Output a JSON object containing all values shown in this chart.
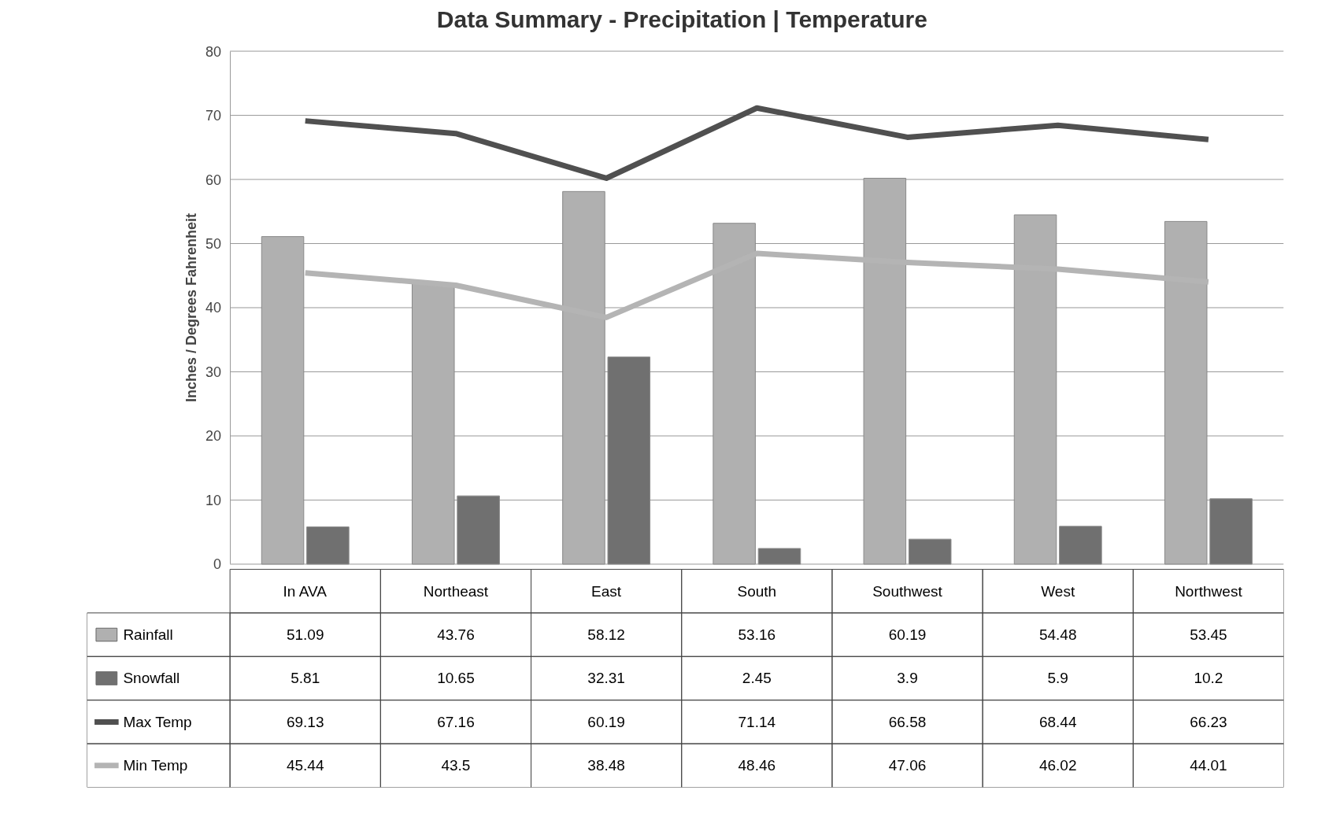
{
  "chart_data": {
    "type": "bar",
    "title": "Data Summary  - Precipitation | Temperature",
    "ylabel": "Inches / Degrees Fahrenheit",
    "categories": [
      "In AVA",
      "Northeast",
      "East",
      "South",
      "Southwest",
      "West",
      "Northwest"
    ],
    "series": [
      {
        "name": "Rainfall",
        "color": "#b0b0b0",
        "values": [
          51.09,
          43.76,
          58.12,
          53.16,
          60.19,
          54.48,
          53.45
        ]
      },
      {
        "name": "Snowfall",
        "color": "#707070",
        "values": [
          5.81,
          10.65,
          32.31,
          2.45,
          3.9,
          5.9,
          10.2
        ]
      },
      {
        "name": "Max Temp",
        "type": "line",
        "color": "#505050",
        "values": [
          69.13,
          67.16,
          60.19,
          71.14,
          66.58,
          68.44,
          66.23
        ]
      },
      {
        "name": "Min Temp",
        "type": "line",
        "color": "#b4b4b4",
        "values": [
          45.44,
          43.5,
          38.48,
          48.46,
          47.06,
          46.02,
          44.01
        ]
      }
    ],
    "ylim": [
      0,
      80
    ],
    "yticks": [
      0,
      10,
      20,
      30,
      40,
      50,
      60,
      70,
      80
    ],
    "grid": "y",
    "legend": "bottom left",
    "data_labels": true
  }
}
